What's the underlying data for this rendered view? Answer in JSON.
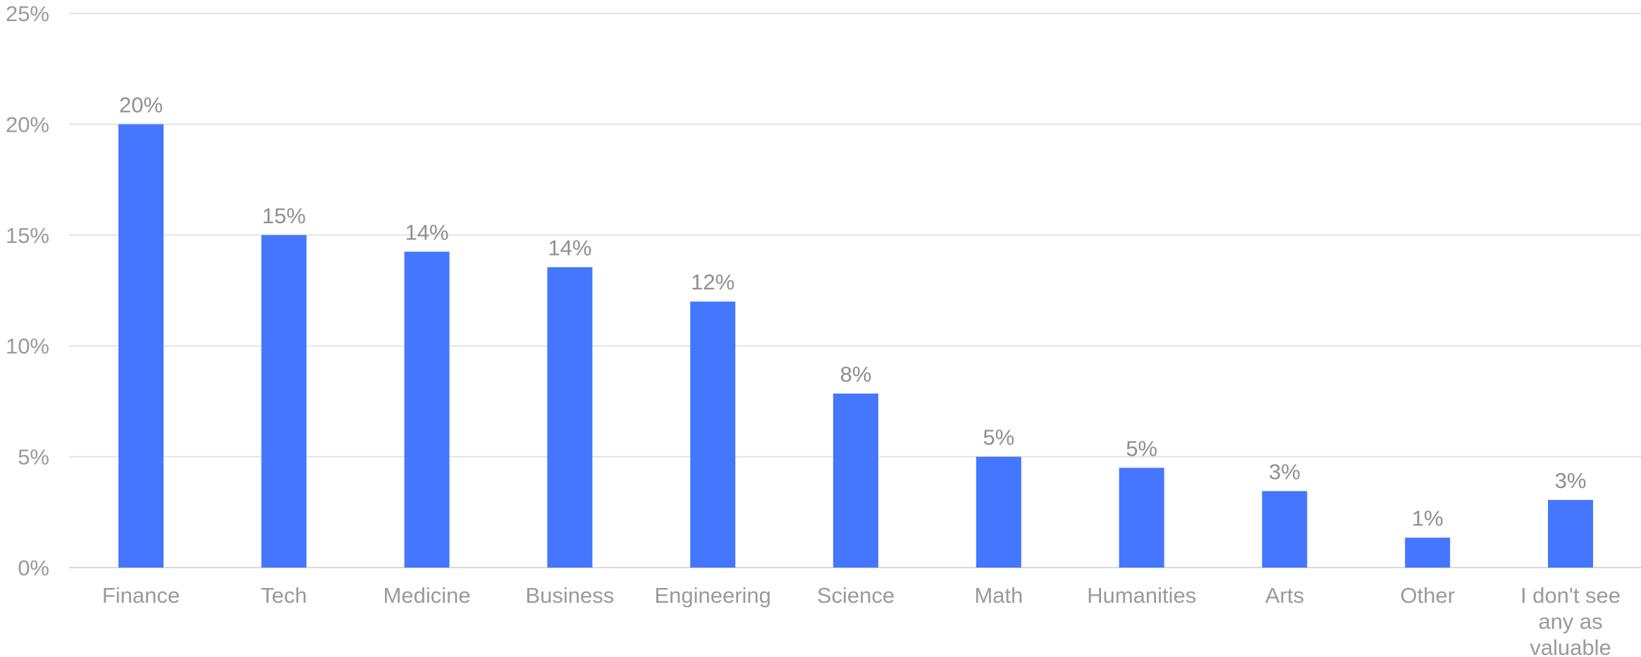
{
  "chart_data": {
    "type": "bar",
    "categories": [
      "Finance",
      "Tech",
      "Medicine",
      "Business",
      "Engineering",
      "Science",
      "Math",
      "Humanities",
      "Arts",
      "Other",
      "I don't see any as valuable"
    ],
    "category_label_lines": [
      [
        "Finance"
      ],
      [
        "Tech"
      ],
      [
        "Medicine"
      ],
      [
        "Business"
      ],
      [
        "Engineering"
      ],
      [
        "Science"
      ],
      [
        "Math"
      ],
      [
        "Humanities"
      ],
      [
        "Arts"
      ],
      [
        "Other"
      ],
      [
        "I don't see",
        "any as",
        "valuable"
      ]
    ],
    "values": [
      20.0,
      15.0,
      14.25,
      13.55,
      12.0,
      7.85,
      5.0,
      4.5,
      3.45,
      1.35,
      3.05
    ],
    "data_labels": [
      "20%",
      "15%",
      "14%",
      "14%",
      "12%",
      "8%",
      "5%",
      "5%",
      "3%",
      "1%",
      "3%"
    ],
    "yticks": [
      0,
      5,
      10,
      15,
      20,
      25
    ],
    "ytick_labels": [
      "0%",
      "5%",
      "10%",
      "15%",
      "20%",
      "25%"
    ],
    "ylim": [
      0,
      25
    ],
    "grid": true,
    "legend": "none",
    "bar_color": "#4577fe",
    "title": "",
    "xlabel": "",
    "ylabel": ""
  }
}
